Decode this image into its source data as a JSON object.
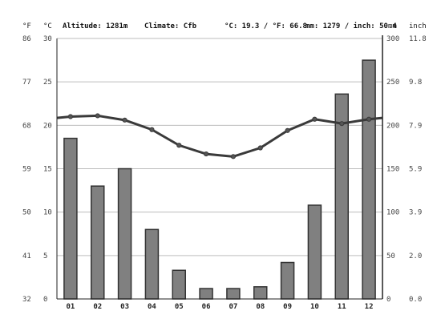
{
  "header": {
    "unit_f": "°F",
    "unit_c": "°C",
    "altitude": "Altitude: 1281m",
    "climate": "Climate: Cfb",
    "temp_avg": "°C: 19.3 / °F: 66.8",
    "precip_avg": "mm: 1279 / inch: 50.4",
    "unit_mm": "mm",
    "unit_inch": "inch"
  },
  "axis_labels": {
    "fahrenheit": [
      "86",
      "77",
      "68",
      "59",
      "50",
      "41",
      "32"
    ],
    "celsius": [
      "30",
      "25",
      "20",
      "15",
      "10",
      "5",
      "0"
    ],
    "mm": [
      "300",
      "250",
      "200",
      "150",
      "100",
      "50",
      "0"
    ],
    "inch": [
      "11.8",
      "9.8",
      "7.9",
      "5.9",
      "3.9",
      "2.0",
      "0.0"
    ]
  },
  "colors": {
    "bar_fill": "#808080",
    "bar_stroke": "#333333",
    "line": "#3a3a3a",
    "marker": "#555555",
    "grid": "#bdbdbd",
    "axis": "#222222"
  },
  "chart_data": {
    "type": "bar",
    "title": "",
    "categories": [
      "01",
      "02",
      "03",
      "04",
      "05",
      "06",
      "07",
      "08",
      "09",
      "10",
      "11",
      "12"
    ],
    "series": [
      {
        "type": "bar",
        "unit": "mm",
        "values": [
          185,
          130,
          150,
          80,
          33,
          12,
          12,
          14,
          42,
          108,
          236,
          275
        ]
      },
      {
        "type": "line",
        "unit": "°C",
        "values": [
          21.0,
          21.1,
          20.6,
          19.5,
          17.7,
          16.7,
          16.4,
          17.4,
          19.4,
          20.7,
          20.2,
          20.7
        ]
      }
    ],
    "ylim_celsius": [
      0,
      30
    ],
    "ylim_fahrenheit": [
      32,
      86
    ],
    "ylim_mm": [
      0,
      300
    ],
    "ylim_inch": [
      0.0,
      11.8
    ],
    "grid": true
  }
}
